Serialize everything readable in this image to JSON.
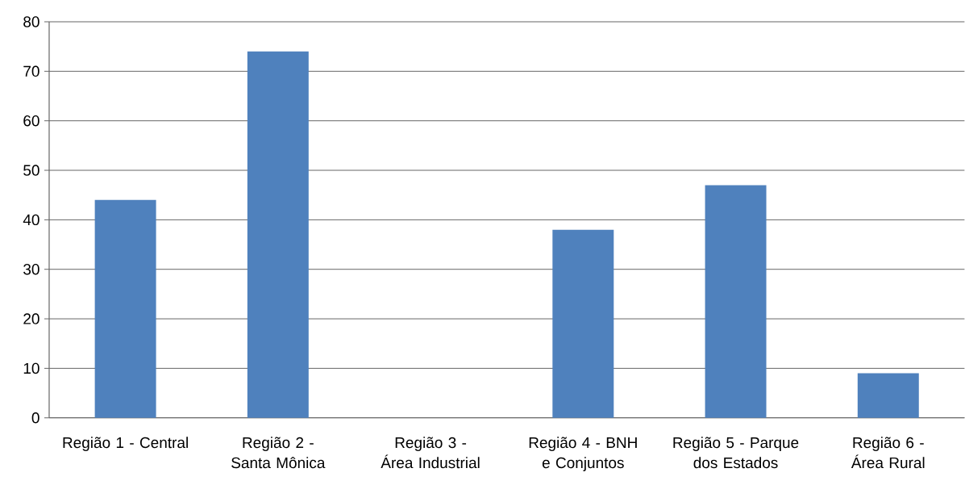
{
  "chart_data": {
    "type": "bar",
    "categories": [
      "Região 1 - Central",
      "Região 2 - Santa Mônica",
      "Região 3 - Área Industrial",
      "Região 4 - BNH e Conjuntos",
      "Região 5 - Parque dos Estados",
      "Região 6 - Área Rural"
    ],
    "values": [
      44,
      74,
      0,
      38,
      47,
      9
    ],
    "color": "#4f81bd",
    "ylim": [
      0,
      80
    ],
    "yticks": [
      0,
      10,
      20,
      30,
      40,
      50,
      60,
      70,
      80
    ],
    "grid": "y"
  }
}
